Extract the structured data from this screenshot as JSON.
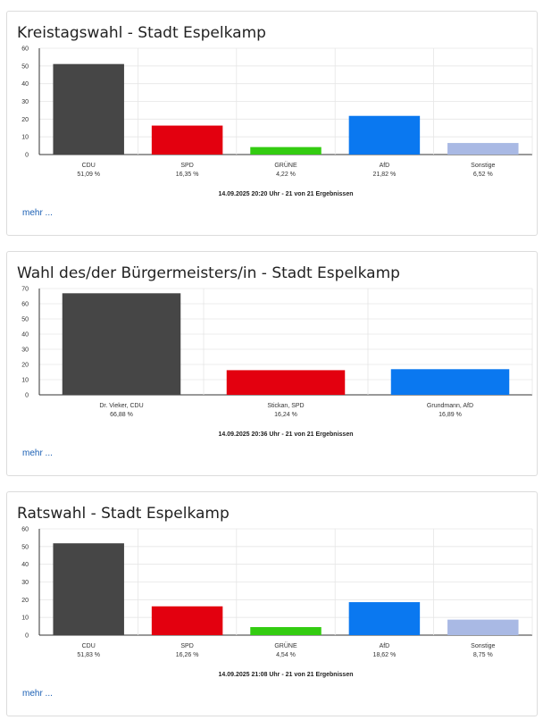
{
  "chart_data": [
    {
      "type": "bar",
      "title": "Kreistagswahl - Stadt Espelkamp",
      "categories": [
        "CDU",
        "SPD",
        "GRÜNE",
        "AfD",
        "Sonstige"
      ],
      "values": [
        51.09,
        16.35,
        4.22,
        21.82,
        6.52
      ],
      "value_labels": [
        "51,09 %",
        "16,35 %",
        "4,22 %",
        "21,82 %",
        "6,52 %"
      ],
      "colors": [
        "#464646",
        "#e3000f",
        "#33cc11",
        "#0a78f0",
        "#a9b9e4"
      ],
      "ylim": [
        0,
        60
      ],
      "yticks": [
        0,
        10,
        20,
        30,
        40,
        50,
        60
      ],
      "grid": true,
      "footer": "14.09.2025 20:20 Uhr - 21 von 21 Ergebnissen",
      "more": "mehr ..."
    },
    {
      "type": "bar",
      "title": "Wahl des/der Bürgermeisters/in - Stadt Espelkamp",
      "categories": [
        "Dr. Vieker, CDU",
        "Stickan, SPD",
        "Grundmann, AfD"
      ],
      "values": [
        66.88,
        16.24,
        16.89
      ],
      "value_labels": [
        "66,88 %",
        "16,24 %",
        "16,89 %"
      ],
      "colors": [
        "#464646",
        "#e3000f",
        "#0a78f0"
      ],
      "ylim": [
        0,
        70
      ],
      "yticks": [
        0,
        10,
        20,
        30,
        40,
        50,
        60,
        70
      ],
      "grid": true,
      "footer": "14.09.2025 20:36 Uhr - 21 von 21 Ergebnissen",
      "more": "mehr ..."
    },
    {
      "type": "bar",
      "title": "Ratswahl - Stadt Espelkamp",
      "categories": [
        "CDU",
        "SPD",
        "GRÜNE",
        "AfD",
        "Sonstige"
      ],
      "values": [
        51.83,
        16.26,
        4.54,
        18.62,
        8.75
      ],
      "value_labels": [
        "51,83 %",
        "16,26 %",
        "4,54 %",
        "18,62 %",
        "8,75 %"
      ],
      "colors": [
        "#464646",
        "#e3000f",
        "#33cc11",
        "#0a78f0",
        "#a9b9e4"
      ],
      "ylim": [
        0,
        60
      ],
      "yticks": [
        0,
        10,
        20,
        30,
        40,
        50,
        60
      ],
      "grid": true,
      "footer": "14.09.2025 21:08 Uhr - 21 von 21 Ergebnissen",
      "more": "mehr ..."
    }
  ]
}
